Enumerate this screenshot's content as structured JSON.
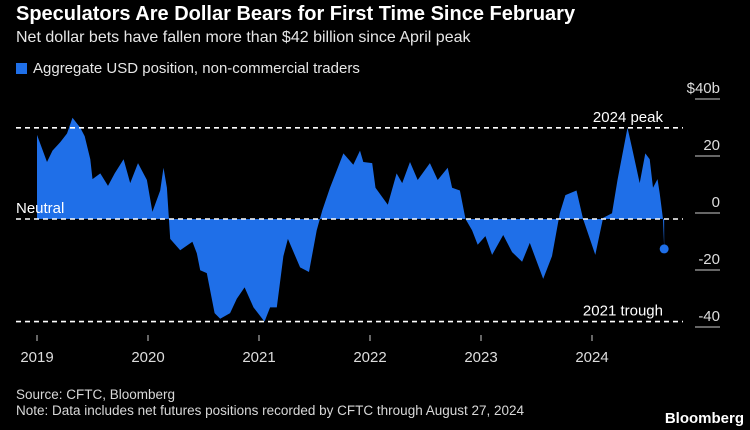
{
  "colors": {
    "series": "#1f6fe8",
    "background": "#000000",
    "grid": "#ffffff"
  },
  "chart_data": {
    "type": "area",
    "title": "Speculators Are Dollar Bears for First Time Since February",
    "subtitle": "Net dollar bets have fallen more than $42 billion since April peak",
    "legend": "Aggregate USD position, non-commercial traders",
    "legend_position": "top-left",
    "ylim": [
      -44,
      42
    ],
    "y_ticks": [
      {
        "value": 40,
        "label": "$40b"
      },
      {
        "value": 20,
        "label": "20"
      },
      {
        "value": 0,
        "label": "0"
      },
      {
        "value": -20,
        "label": "-20"
      },
      {
        "value": -40,
        "label": "-40"
      }
    ],
    "x_ticks": [
      {
        "value": 2019,
        "label": "2019"
      },
      {
        "value": 2020,
        "label": "2020"
      },
      {
        "value": 2021,
        "label": "2021"
      },
      {
        "value": 2022,
        "label": "2022"
      },
      {
        "value": 2023,
        "label": "2023"
      },
      {
        "value": 2024,
        "label": "2024"
      }
    ],
    "reference_lines": [
      {
        "value": 32,
        "label": "2024 peak",
        "label_side": "right"
      },
      {
        "value": 0,
        "label": "Neutral",
        "label_side": "left"
      },
      {
        "value": -36,
        "label": "2021 trough",
        "label_side": "right"
      }
    ],
    "series": [
      {
        "name": "Aggregate USD position, non-commercial traders",
        "unit": "$ billion",
        "points": [
          [
            2019.0,
            29.5
          ],
          [
            2019.09,
            20
          ],
          [
            2019.14,
            24
          ],
          [
            2019.21,
            27
          ],
          [
            2019.27,
            30
          ],
          [
            2019.32,
            35.5
          ],
          [
            2019.39,
            32
          ],
          [
            2019.43,
            29
          ],
          [
            2019.48,
            21
          ],
          [
            2019.5,
            14
          ],
          [
            2019.57,
            16
          ],
          [
            2019.64,
            11.6
          ],
          [
            2019.7,
            16
          ],
          [
            2019.78,
            21
          ],
          [
            2019.84,
            12.6
          ],
          [
            2019.91,
            19.6
          ],
          [
            2019.99,
            13.7
          ],
          [
            2020.04,
            2.5
          ],
          [
            2020.11,
            10
          ],
          [
            2020.14,
            18
          ],
          [
            2020.17,
            11
          ],
          [
            2020.2,
            -7
          ],
          [
            2020.29,
            -11
          ],
          [
            2020.4,
            -8
          ],
          [
            2020.44,
            -12
          ],
          [
            2020.47,
            -18
          ],
          [
            2020.53,
            -19
          ],
          [
            2020.6,
            -33
          ],
          [
            2020.65,
            -35
          ],
          [
            2020.74,
            -33
          ],
          [
            2020.8,
            -28
          ],
          [
            2020.87,
            -24
          ],
          [
            2020.95,
            -31
          ],
          [
            2021.05,
            -36
          ],
          [
            2021.1,
            -31
          ],
          [
            2021.16,
            -31
          ],
          [
            2021.22,
            -13
          ],
          [
            2021.26,
            -7
          ],
          [
            2021.37,
            -17
          ],
          [
            2021.45,
            -18.6
          ],
          [
            2021.52,
            -4
          ],
          [
            2021.57,
            3
          ],
          [
            2021.64,
            11
          ],
          [
            2021.76,
            23
          ],
          [
            2021.85,
            19
          ],
          [
            2021.91,
            24
          ],
          [
            2021.94,
            20
          ],
          [
            2022.02,
            19.6
          ],
          [
            2022.05,
            11
          ],
          [
            2022.16,
            5
          ],
          [
            2022.24,
            16
          ],
          [
            2022.29,
            12.6
          ],
          [
            2022.36,
            20
          ],
          [
            2022.43,
            13.7
          ],
          [
            2022.54,
            19.6
          ],
          [
            2022.61,
            13.7
          ],
          [
            2022.7,
            18
          ],
          [
            2022.74,
            11
          ],
          [
            2022.81,
            10
          ],
          [
            2022.86,
            0
          ],
          [
            2022.92,
            -4
          ],
          [
            2022.97,
            -9
          ],
          [
            2023.04,
            -6
          ],
          [
            2023.1,
            -12.6
          ],
          [
            2023.2,
            -5.6
          ],
          [
            2023.28,
            -11.6
          ],
          [
            2023.37,
            -15
          ],
          [
            2023.44,
            -8.4
          ],
          [
            2023.56,
            -21
          ],
          [
            2023.64,
            -13
          ],
          [
            2023.71,
            2
          ],
          [
            2023.76,
            8.4
          ],
          [
            2023.86,
            10
          ],
          [
            2023.92,
            0
          ],
          [
            2024.03,
            -12.6
          ],
          [
            2024.1,
            0.4
          ],
          [
            2024.18,
            2
          ],
          [
            2024.23,
            13.7
          ],
          [
            2024.32,
            32
          ],
          [
            2024.36,
            25
          ],
          [
            2024.43,
            12.6
          ],
          [
            2024.48,
            23
          ],
          [
            2024.52,
            21
          ],
          [
            2024.55,
            11
          ],
          [
            2024.59,
            14
          ],
          [
            2024.61,
            9
          ],
          [
            2024.64,
            0
          ],
          [
            2024.65,
            -10.5
          ]
        ]
      }
    ]
  },
  "footer": {
    "source": "Source: CFTC, Bloomberg",
    "note": "Note: Data includes net futures positions recorded by CFTC through August 27, 2024",
    "logo": "Bloomberg"
  }
}
